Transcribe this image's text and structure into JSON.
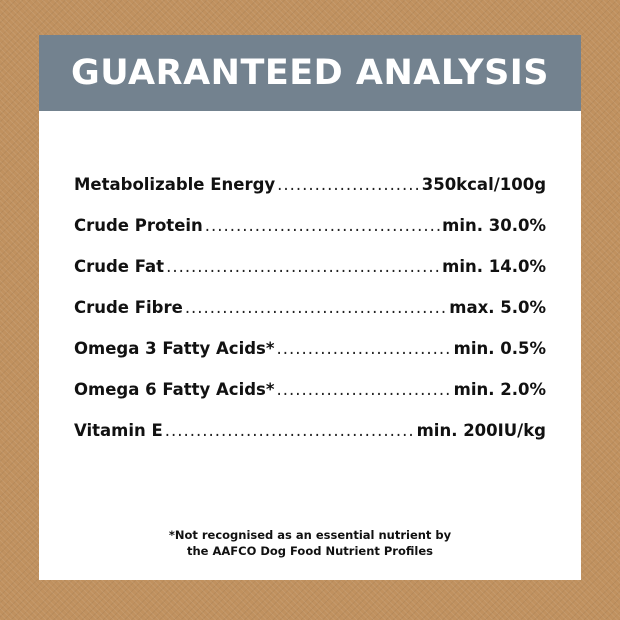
{
  "title": "GUARANTEED ANALYSIS",
  "colors": {
    "header": "#73828f",
    "background": "#c0915f"
  },
  "rows": [
    {
      "label": "Metabolizable Energy",
      "value": "350kcal/100g"
    },
    {
      "label": "Crude Protein",
      "value": "min. 30.0%"
    },
    {
      "label": "Crude Fat",
      "value": "min. 14.0%"
    },
    {
      "label": "Crude Fibre",
      "value": "max. 5.0%"
    },
    {
      "label": "Omega 3 Fatty Acids*",
      "value": "min. 0.5%"
    },
    {
      "label": "Omega 6 Fatty Acids*",
      "value": "min. 2.0%"
    },
    {
      "label": "Vitamin E",
      "value": "min. 200IU/kg"
    }
  ],
  "footnote": {
    "line1": "*Not recognised as an essential nutrient by",
    "line2": "the AAFCO Dog Food Nutrient Profiles"
  }
}
